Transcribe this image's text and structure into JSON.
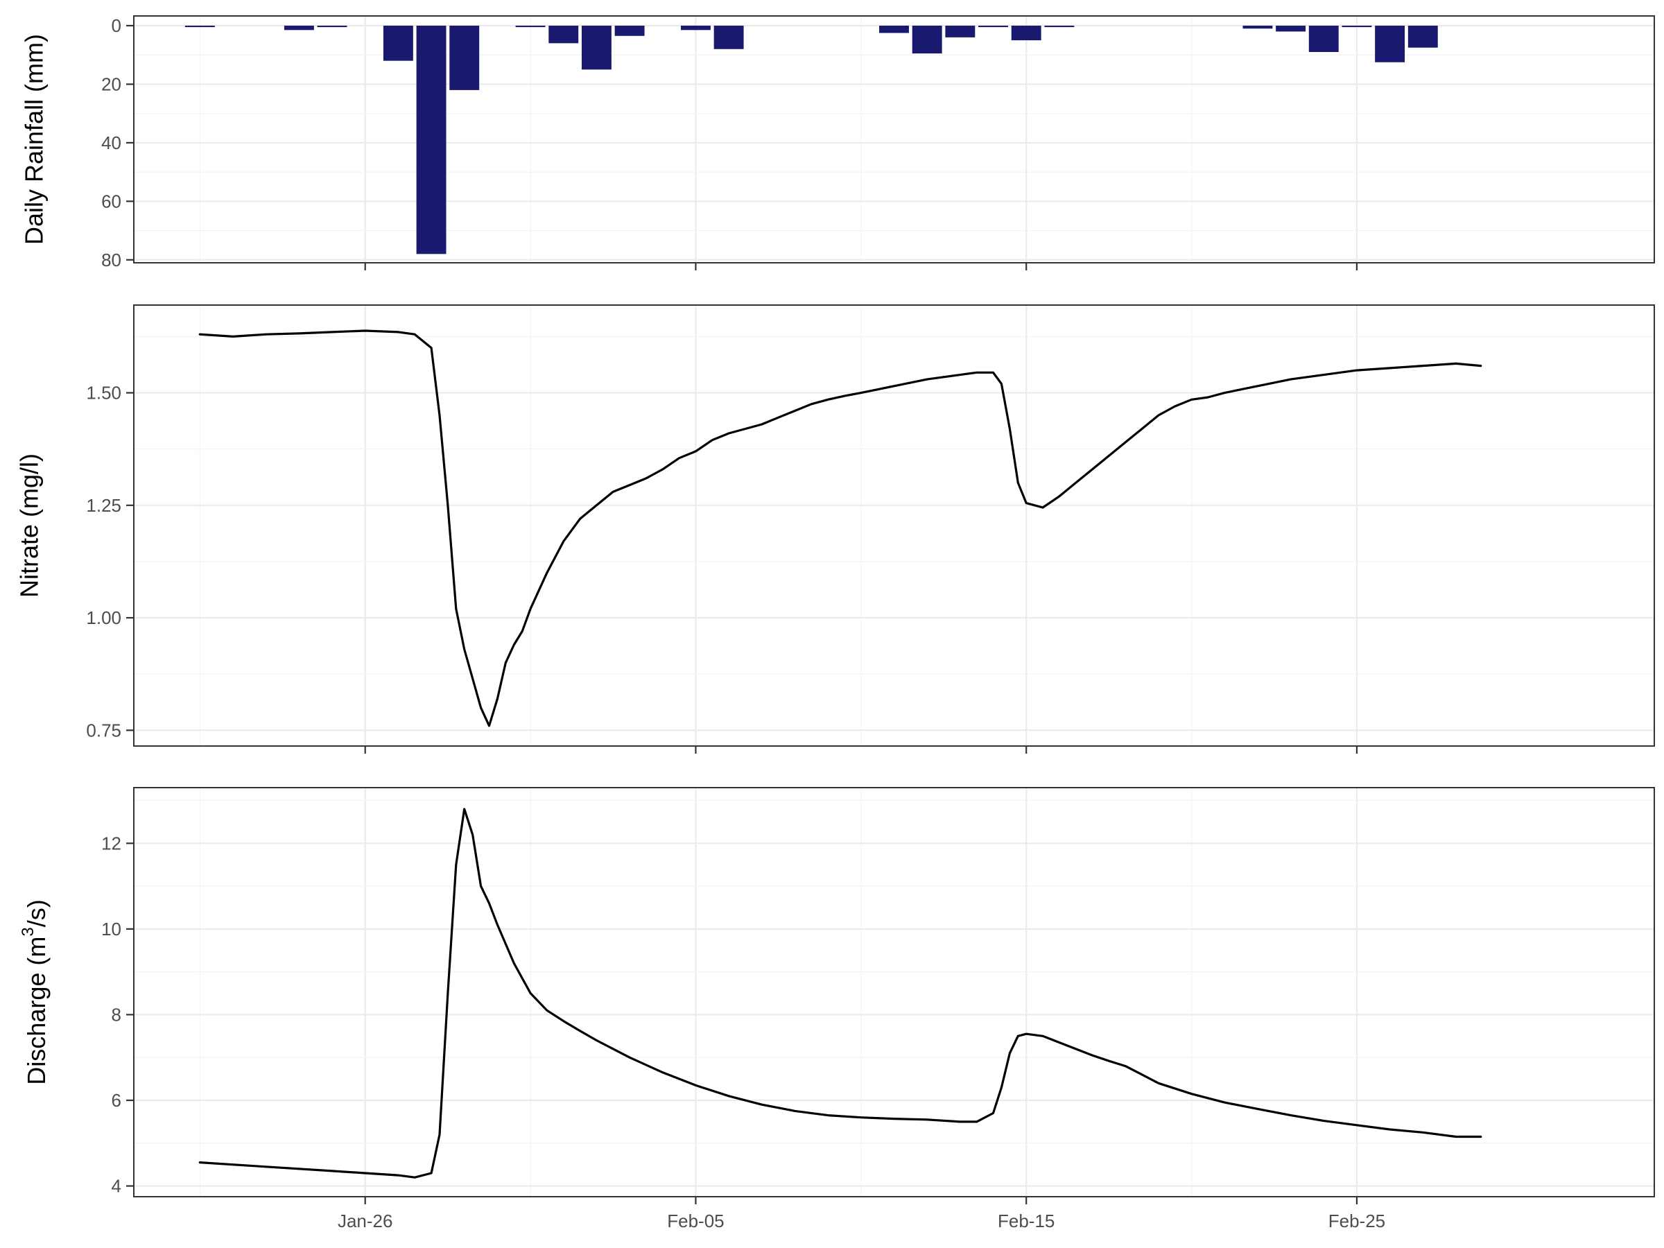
{
  "chart_data": {
    "type": "line",
    "figure_title": "",
    "x_axis": {
      "type": "date",
      "tick_labels": [
        "Jan-26",
        "Feb-05",
        "Feb-15",
        "Feb-25"
      ],
      "tick_dates": [
        "2024-01-26",
        "2024-02-05",
        "2024-02-15",
        "2024-02-25"
      ],
      "range": [
        "2024-01-19T00:00",
        "2024-03-05T00:00"
      ]
    },
    "panels": [
      {
        "id": "rainfall",
        "type": "bar",
        "ylabel": "Daily Rainfall (mm)",
        "y_reversed": true,
        "ylim": [
          0,
          81
        ],
        "yticks": [
          0,
          20,
          40,
          60,
          80
        ],
        "bar_color": "#191970",
        "series": [
          {
            "dates": [
              "2024-01-21",
              "2024-01-24",
              "2024-01-25",
              "2024-01-26",
              "2024-01-27",
              "2024-01-28",
              "2024-01-29",
              "2024-01-30",
              "2024-01-31",
              "2024-02-01",
              "2024-02-02",
              "2024-02-03",
              "2024-02-04",
              "2024-02-05",
              "2024-02-06",
              "2024-02-11",
              "2024-02-12",
              "2024-02-13",
              "2024-02-14",
              "2024-02-15",
              "2024-02-16",
              "2024-02-22",
              "2024-02-23",
              "2024-02-24",
              "2024-02-25",
              "2024-02-26",
              "2024-02-27",
              "2024-02-28"
            ],
            "values": [
              0.5,
              1.5,
              0.5,
              0,
              12,
              78,
              22,
              0,
              0.5,
              6,
              15,
              3.5,
              0,
              1.5,
              8,
              2.5,
              9.5,
              4,
              0.5,
              5,
              0.5,
              1,
              2,
              9,
              0.5,
              12.5,
              7.5,
              0
            ]
          }
        ]
      },
      {
        "id": "nitrate",
        "type": "line",
        "ylabel": "Nitrate (mg/l)",
        "ylim": [
          0.715,
          1.695
        ],
        "yticks": [
          0.75,
          1.0,
          1.25,
          1.5
        ],
        "ytick_labels": [
          "0.75",
          "1.00",
          "1.25",
          "1.50"
        ],
        "series": [
          {
            "dates": [
              "2024-01-21T00:00",
              "2024-01-22T00:00",
              "2024-01-23T00:00",
              "2024-01-24T00:00",
              "2024-01-25T00:00",
              "2024-01-26T00:00",
              "2024-01-27T00:00",
              "2024-01-27T12:00",
              "2024-01-28T00:00",
              "2024-01-28T06:00",
              "2024-01-28T12:00",
              "2024-01-28T18:00",
              "2024-01-29T00:00",
              "2024-01-29T12:00",
              "2024-01-29T18:00",
              "2024-01-30T00:00",
              "2024-01-30T06:00",
              "2024-01-30T12:00",
              "2024-01-30T18:00",
              "2024-01-31T00:00",
              "2024-01-31T12:00",
              "2024-02-01T00:00",
              "2024-02-01T12:00",
              "2024-02-02T00:00",
              "2024-02-02T12:00",
              "2024-02-03T00:00",
              "2024-02-03T12:00",
              "2024-02-04T00:00",
              "2024-02-04T12:00",
              "2024-02-05T00:00",
              "2024-02-05T12:00",
              "2024-02-06T00:00",
              "2024-02-06T12:00",
              "2024-02-07T00:00",
              "2024-02-07T12:00",
              "2024-02-08T00:00",
              "2024-02-08T12:00",
              "2024-02-09T00:00",
              "2024-02-09T12:00",
              "2024-02-10T00:00",
              "2024-02-11T00:00",
              "2024-02-12T00:00",
              "2024-02-13T00:00",
              "2024-02-13T12:00",
              "2024-02-14T00:00",
              "2024-02-14T06:00",
              "2024-02-14T12:00",
              "2024-02-14T18:00",
              "2024-02-15T00:00",
              "2024-02-15T12:00",
              "2024-02-16T00:00",
              "2024-02-16T12:00",
              "2024-02-17T00:00",
              "2024-02-17T12:00",
              "2024-02-18T00:00",
              "2024-02-18T12:00",
              "2024-02-19T00:00",
              "2024-02-19T12:00",
              "2024-02-20T00:00",
              "2024-02-20T12:00",
              "2024-02-21T00:00",
              "2024-02-22T00:00",
              "2024-02-23T00:00",
              "2024-02-24T00:00",
              "2024-02-25T00:00",
              "2024-02-26T00:00",
              "2024-02-27T00:00",
              "2024-02-28T00:00",
              "2024-02-28T18:00"
            ],
            "values": [
              1.63,
              1.625,
              1.63,
              1.632,
              1.635,
              1.638,
              1.635,
              1.63,
              1.6,
              1.45,
              1.25,
              1.02,
              0.93,
              0.8,
              0.76,
              0.82,
              0.9,
              0.94,
              0.97,
              1.02,
              1.1,
              1.17,
              1.22,
              1.25,
              1.28,
              1.295,
              1.31,
              1.33,
              1.355,
              1.37,
              1.395,
              1.41,
              1.42,
              1.43,
              1.445,
              1.46,
              1.475,
              1.485,
              1.493,
              1.5,
              1.515,
              1.53,
              1.54,
              1.545,
              1.545,
              1.52,
              1.42,
              1.3,
              1.255,
              1.245,
              1.27,
              1.3,
              1.33,
              1.36,
              1.39,
              1.42,
              1.45,
              1.47,
              1.485,
              1.49,
              1.5,
              1.515,
              1.53,
              1.54,
              1.55,
              1.555,
              1.56,
              1.565,
              1.56
            ]
          }
        ]
      },
      {
        "id": "discharge",
        "type": "line",
        "ylabel": "Discharge (m",
        "ylabel_superscript": "3",
        "ylabel_suffix": "/s)",
        "ylim": [
          3.75,
          13.3
        ],
        "yticks": [
          4,
          6,
          8,
          10,
          12
        ],
        "series": [
          {
            "dates": [
              "2024-01-21T00:00",
              "2024-01-23T00:00",
              "2024-01-25T00:00",
              "2024-01-26T00:00",
              "2024-01-27T00:00",
              "2024-01-27T12:00",
              "2024-01-28T00:00",
              "2024-01-28T06:00",
              "2024-01-28T12:00",
              "2024-01-28T18:00",
              "2024-01-29T00:00",
              "2024-01-29T06:00",
              "2024-01-29T12:00",
              "2024-01-29T18:00",
              "2024-01-30T00:00",
              "2024-01-30T12:00",
              "2024-01-31T00:00",
              "2024-01-31T12:00",
              "2024-02-01T00:00",
              "2024-02-01T12:00",
              "2024-02-02T00:00",
              "2024-02-03T00:00",
              "2024-02-04T00:00",
              "2024-02-05T00:00",
              "2024-02-06T00:00",
              "2024-02-07T00:00",
              "2024-02-08T00:00",
              "2024-02-09T00:00",
              "2024-02-10T00:00",
              "2024-02-11T00:00",
              "2024-02-12T00:00",
              "2024-02-13T00:00",
              "2024-02-13T12:00",
              "2024-02-14T00:00",
              "2024-02-14T06:00",
              "2024-02-14T12:00",
              "2024-02-14T18:00",
              "2024-02-15T00:00",
              "2024-02-15T12:00",
              "2024-02-16T00:00",
              "2024-02-16T12:00",
              "2024-02-17T00:00",
              "2024-02-17T12:00",
              "2024-02-18T00:00",
              "2024-02-18T12:00",
              "2024-02-19T00:00",
              "2024-02-20T00:00",
              "2024-02-21T00:00",
              "2024-02-22T00:00",
              "2024-02-23T00:00",
              "2024-02-24T00:00",
              "2024-02-25T00:00",
              "2024-02-26T00:00",
              "2024-02-27T00:00",
              "2024-02-28T00:00",
              "2024-02-28T18:00"
            ],
            "values": [
              4.55,
              4.45,
              4.35,
              4.3,
              4.25,
              4.2,
              4.3,
              5.2,
              8.5,
              11.5,
              12.8,
              12.2,
              11.0,
              10.6,
              10.1,
              9.2,
              8.5,
              8.1,
              7.85,
              7.62,
              7.4,
              7.0,
              6.65,
              6.35,
              6.1,
              5.9,
              5.75,
              5.65,
              5.6,
              5.57,
              5.55,
              5.5,
              5.5,
              5.7,
              6.3,
              7.1,
              7.5,
              7.55,
              7.5,
              7.35,
              7.2,
              7.05,
              6.92,
              6.8,
              6.6,
              6.4,
              6.15,
              5.95,
              5.8,
              5.65,
              5.52,
              5.42,
              5.32,
              5.25,
              5.15,
              5.15
            ]
          }
        ]
      }
    ]
  }
}
